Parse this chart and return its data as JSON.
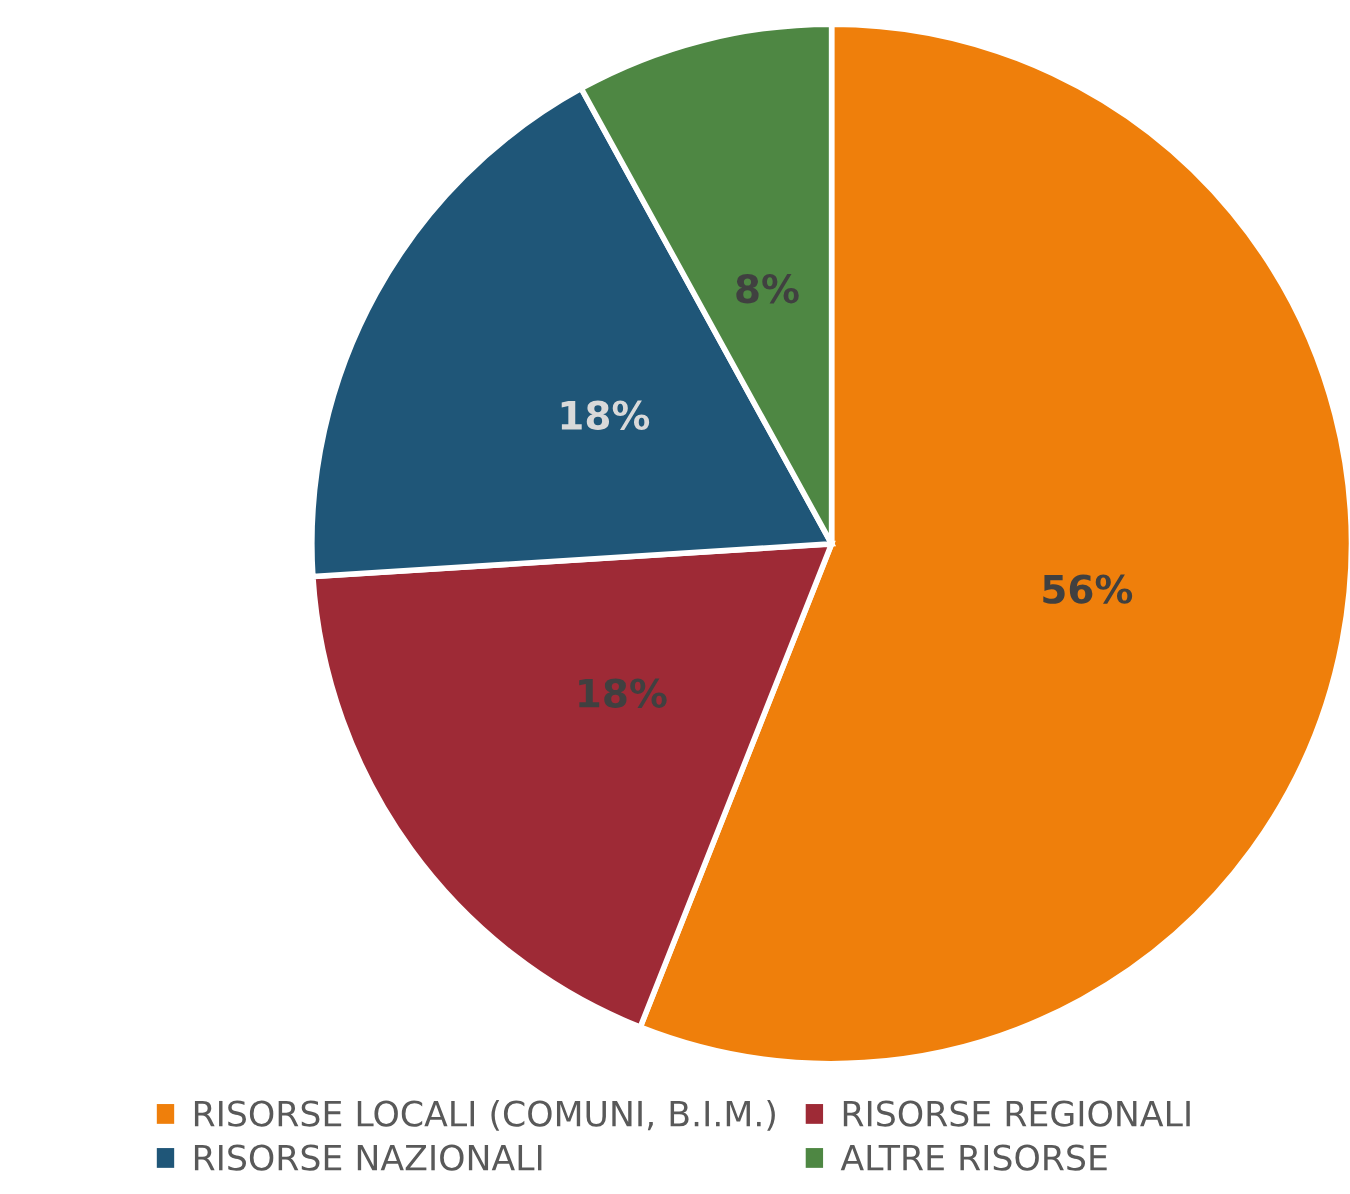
{
  "chart_data": {
    "type": "pie",
    "categories": [
      "RISORSE LOCALI (COMUNI, B.I.M.)",
      "RISORSE REGIONALI",
      "RISORSE NAZIONALI",
      "ALTRE RISORSE"
    ],
    "values": [
      56,
      18,
      18,
      8
    ],
    "colors": [
      "#ef7f0b",
      "#9e2a36",
      "#1f5678",
      "#4e8743"
    ],
    "value_labels": [
      "56%",
      "18%",
      "18%",
      "8%"
    ],
    "legend": "bottom"
  }
}
